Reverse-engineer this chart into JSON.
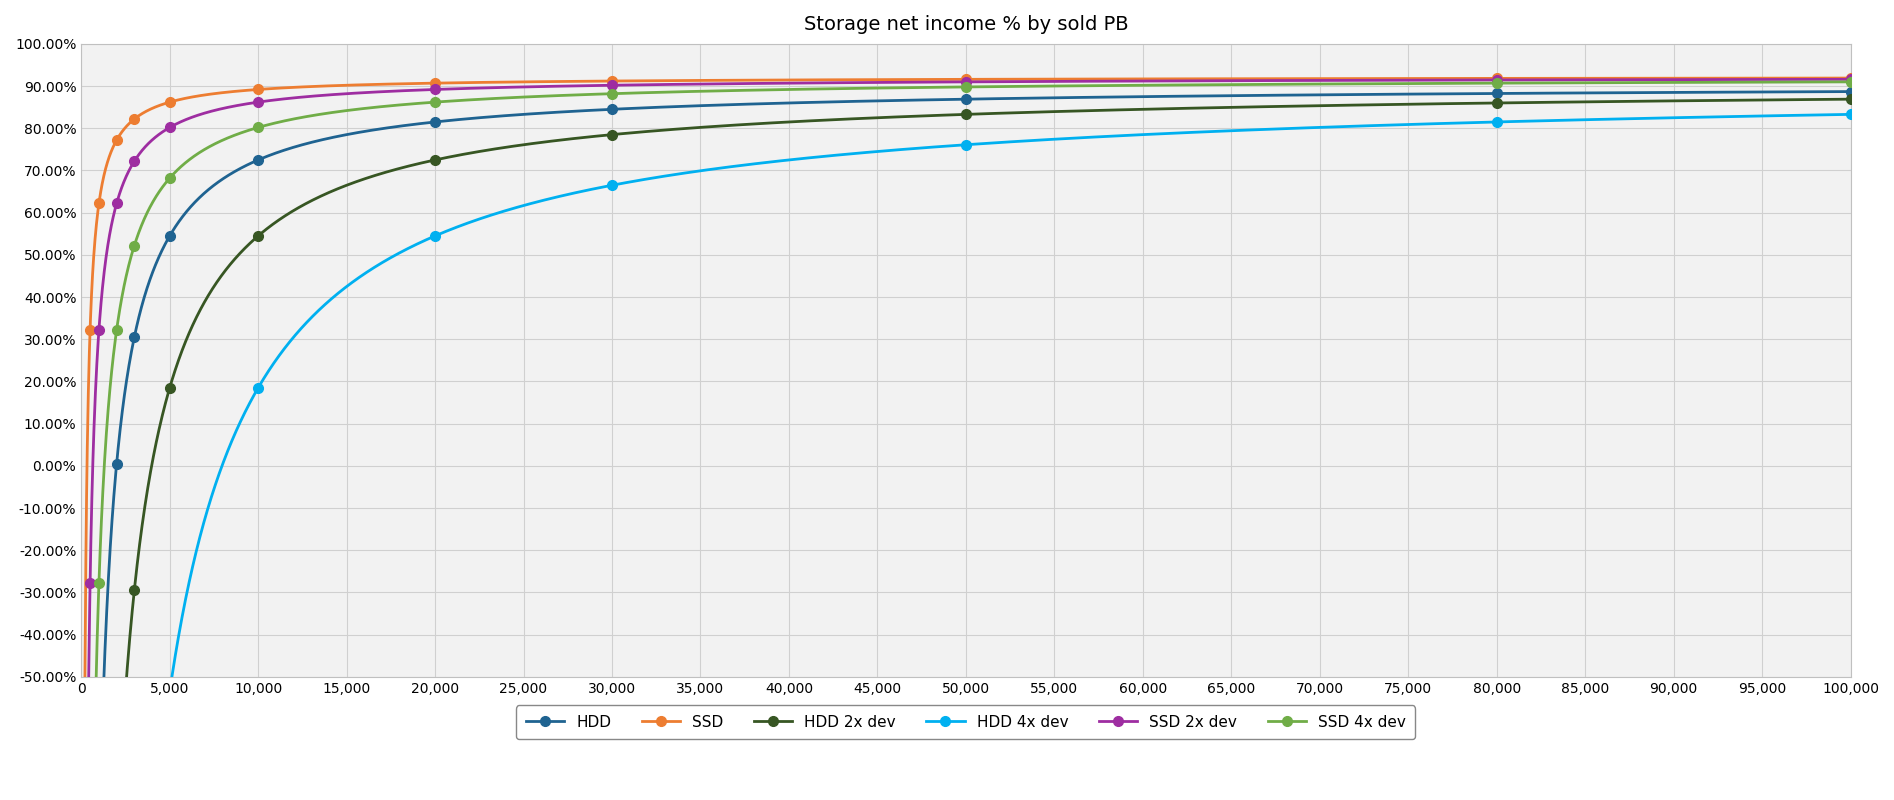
{
  "title": "Storage net income % by sold PB",
  "xlim": [
    0,
    100000
  ],
  "ylim": [
    -0.5,
    1.0
  ],
  "xticks": [
    0,
    5000,
    10000,
    15000,
    20000,
    25000,
    30000,
    35000,
    40000,
    45000,
    50000,
    55000,
    60000,
    65000,
    70000,
    75000,
    80000,
    85000,
    90000,
    95000,
    100000
  ],
  "yticks": [
    -0.5,
    -0.4,
    -0.3,
    -0.2,
    -0.1,
    0.0,
    0.1,
    0.2,
    0.3,
    0.4,
    0.5,
    0.6,
    0.7,
    0.8,
    0.9,
    1.0
  ],
  "series": [
    {
      "label": "HDD",
      "color": "#1f6391",
      "asymptote": 0.905,
      "fixed_cost": 1800,
      "x_markers": [
        1,
        500,
        1000,
        2000,
        3000,
        5000,
        10000,
        20000,
        30000,
        50000,
        80000,
        100000
      ]
    },
    {
      "label": "SSD",
      "color": "#ed7d31",
      "asymptote": 0.922,
      "fixed_cost": 300,
      "x_markers": [
        1,
        500,
        1000,
        2000,
        3000,
        5000,
        10000,
        20000,
        30000,
        50000,
        80000,
        100000
      ]
    },
    {
      "label": "HDD 2x dev",
      "color": "#375623",
      "asymptote": 0.905,
      "fixed_cost": 3600,
      "x_markers": [
        1,
        500,
        1000,
        2000,
        3000,
        5000,
        10000,
        20000,
        30000,
        50000,
        80000,
        100000
      ]
    },
    {
      "label": "HDD 4x dev",
      "color": "#00b0f0",
      "asymptote": 0.905,
      "fixed_cost": 7200,
      "x_markers": [
        1,
        500,
        1000,
        2000,
        3000,
        5000,
        10000,
        20000,
        30000,
        50000,
        80000,
        100000
      ]
    },
    {
      "label": "SSD 2x dev",
      "color": "#9e2da1",
      "asymptote": 0.922,
      "fixed_cost": 600,
      "x_markers": [
        1,
        500,
        1000,
        2000,
        3000,
        5000,
        10000,
        20000,
        30000,
        50000,
        80000,
        100000
      ]
    },
    {
      "label": "SSD 4x dev",
      "color": "#70ad47",
      "asymptote": 0.922,
      "fixed_cost": 1200,
      "x_markers": [
        1,
        500,
        1000,
        2000,
        3000,
        5000,
        10000,
        20000,
        30000,
        50000,
        80000,
        100000
      ]
    }
  ],
  "background_color": "#ffffff",
  "plot_bg_color": "#f2f2f2",
  "grid_color": "#d0d0d0",
  "title_fontsize": 14,
  "line_width": 2.0,
  "marker_size": 7
}
